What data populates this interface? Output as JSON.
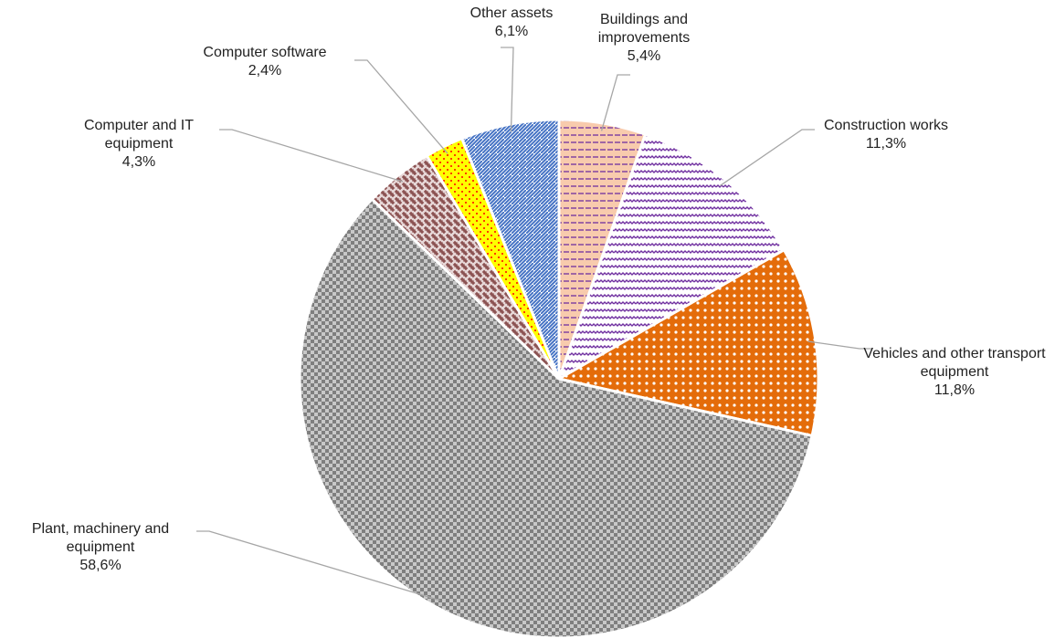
{
  "chart_data": {
    "type": "pie",
    "categories": [
      "Buildings and improvements",
      "Construction works",
      "Vehicles and other transport equipment",
      "Plant, machinery and equipment",
      "Computer and IT equipment",
      "Computer software",
      "Other assets"
    ],
    "values": [
      5.4,
      11.3,
      11.8,
      58.6,
      4.3,
      2.4,
      6.1
    ],
    "value_labels": [
      "5,4%",
      "11,3%",
      "11,8%",
      "58,6%",
      "4,3%",
      "2,4%",
      "6,1%"
    ],
    "colors": [
      "#f8cbad",
      "#7030a0",
      "#e46c0a",
      "#7f7f7f",
      "#7f3f3f",
      "#ffff00",
      "#4472c4"
    ]
  }
}
